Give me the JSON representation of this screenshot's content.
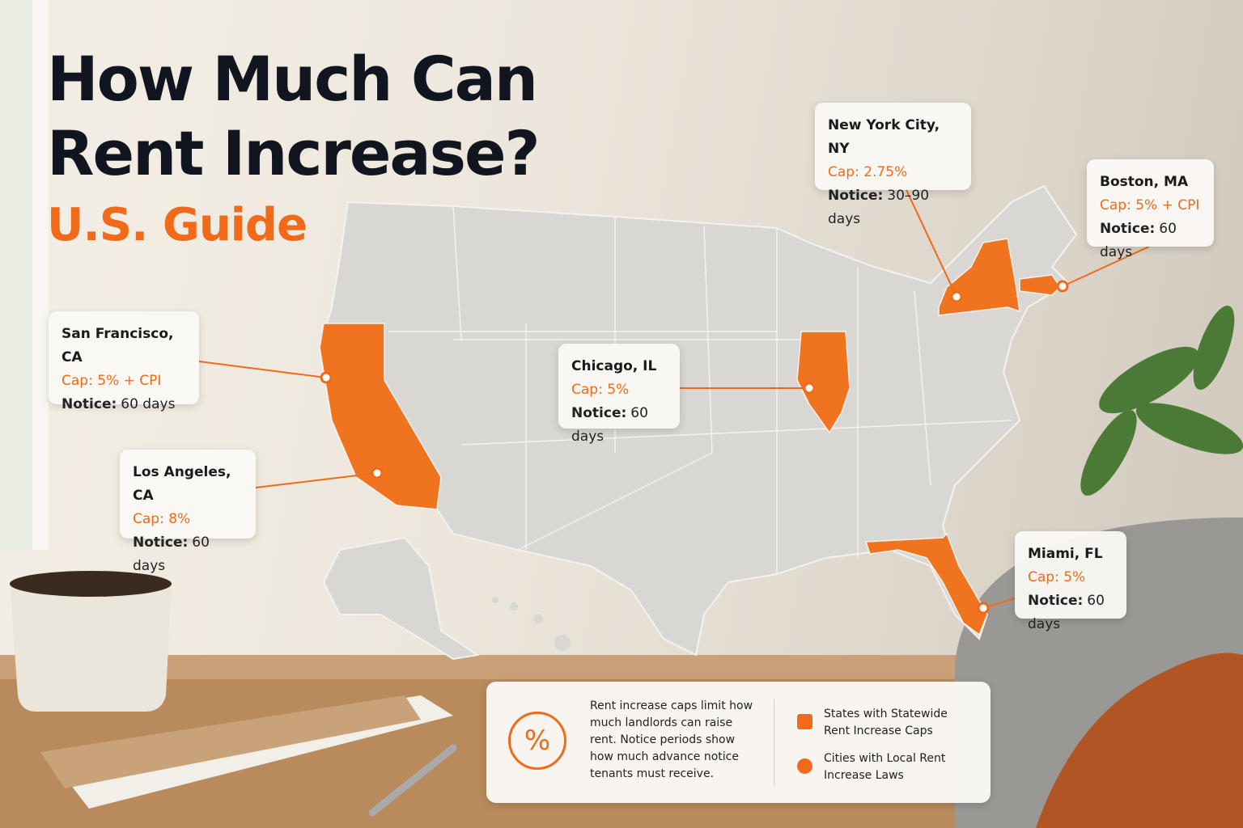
{
  "header": {
    "title": [
      "How Much Can",
      "Rent Increase?"
    ],
    "subtitle": "U.S. Guide"
  },
  "callouts": [
    {
      "city": "San Francisco, CA",
      "cap": "Cap: 5% + CPI",
      "notice_label": "Notice:",
      "notice": "60 days"
    },
    {
      "city": "Los Angeles, CA",
      "cap": "Cap: 8%",
      "notice_label": "Notice:",
      "notice": "60 days"
    },
    {
      "city": "Chicago, IL",
      "cap": "Cap: 5%",
      "notice_label": "Notice:",
      "notice": "60 days"
    },
    {
      "city": "New York City, NY",
      "cap": "Cap: 2.75%",
      "notice_label": "Notice:",
      "notice": "30–90 days"
    },
    {
      "city": "Boston, MA",
      "cap": "Cap: 5% + CPI",
      "notice_label": "Notice:",
      "notice": "60 days"
    },
    {
      "city": "Miami, FL",
      "cap": "Cap: 5%",
      "notice_label": "Notice:",
      "notice": "60 days"
    }
  ],
  "legend": {
    "icon": "%",
    "description": "Rent increase caps limit how much landlords can raise rent. Notice periods show how much advance notice tenants must receive.",
    "items": [
      "States with Statewide Rent Increase Caps",
      "Cities with Local Rent Increase Laws"
    ]
  }
}
